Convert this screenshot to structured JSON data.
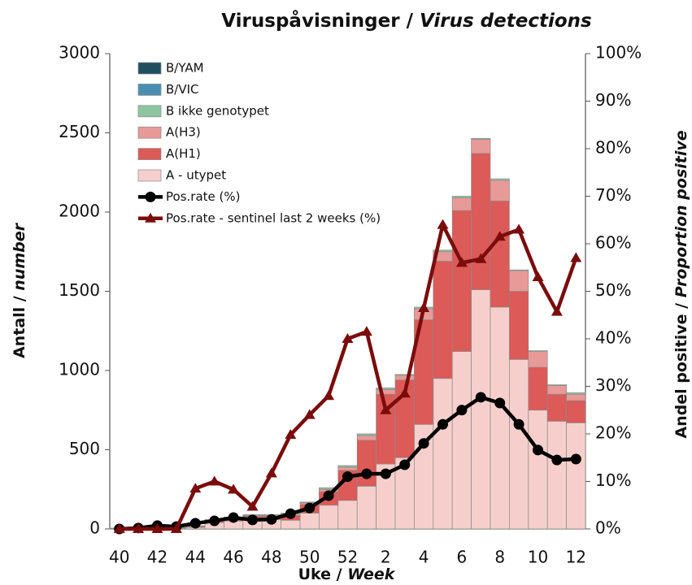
{
  "chart_data": {
    "type": "bar",
    "title_parts": [
      "Viruspåvisninger / ",
      "Virus detections"
    ],
    "y_label_parts": [
      "Antall / ",
      "number"
    ],
    "y2_label_parts": [
      "Andel positive / ",
      "Proportion positive"
    ],
    "x_label_parts": [
      "Uke / ",
      "Week"
    ],
    "categories": [
      "40",
      null,
      "42",
      null,
      "44",
      null,
      "46",
      null,
      "48",
      null,
      "50",
      null,
      "52",
      null,
      "2",
      null,
      "4",
      null,
      "6",
      null,
      "8",
      null,
      "10",
      null,
      "12"
    ],
    "ylim": [
      0,
      3000
    ],
    "yticks": [
      0,
      500,
      1000,
      1500,
      2000,
      2500,
      3000
    ],
    "y2lim": [
      0,
      100
    ],
    "y2ticks": [
      {
        "value": 0,
        "label": "0%"
      },
      {
        "value": 10,
        "label": "10%"
      },
      {
        "value": 20,
        "label": "20%"
      },
      {
        "value": 30,
        "label": "30%"
      },
      {
        "value": 40,
        "label": "40%"
      },
      {
        "value": 50,
        "label": "50%"
      },
      {
        "value": 60,
        "label": "60%"
      },
      {
        "value": 70,
        "label": "70%"
      },
      {
        "value": 80,
        "label": "80%"
      },
      {
        "value": 90,
        "label": "90%"
      },
      {
        "value": 100,
        "label": "100%"
      }
    ],
    "stacked": true,
    "series": [
      {
        "name": "A - utypet",
        "type": "bar",
        "color": "#f6cfcc",
        "values": [
          3,
          3,
          4,
          5,
          10,
          40,
          50,
          60,
          60,
          55,
          100,
          150,
          180,
          270,
          410,
          450,
          660,
          950,
          1120,
          1510,
          1400,
          1070,
          750,
          680,
          670
        ]
      },
      {
        "name": "A(H1)",
        "type": "bar",
        "color": "#dc5a57",
        "values": [
          1,
          1,
          2,
          3,
          5,
          10,
          15,
          20,
          20,
          30,
          55,
          85,
          190,
          290,
          440,
          490,
          660,
          740,
          890,
          860,
          670,
          430,
          270,
          170,
          140
        ]
      },
      {
        "name": "A(H3)",
        "type": "bar",
        "color": "#e89a98",
        "values": [
          0,
          0,
          1,
          1,
          3,
          5,
          5,
          5,
          5,
          10,
          10,
          15,
          20,
          30,
          30,
          30,
          70,
          60,
          80,
          90,
          130,
          130,
          100,
          55,
          40
        ]
      },
      {
        "name": "B ikke genotypet",
        "type": "bar",
        "color": "#8fc4a0",
        "values": [
          1,
          1,
          1,
          1,
          2,
          5,
          5,
          5,
          5,
          5,
          5,
          10,
          10,
          10,
          10,
          5,
          10,
          10,
          10,
          5,
          10,
          5,
          5,
          5,
          10
        ]
      },
      {
        "name": "B/VIC",
        "type": "bar",
        "color": "#4a8fb0",
        "values": [
          0,
          0,
          0,
          0,
          0,
          0,
          0,
          0,
          0,
          0,
          0,
          0,
          0,
          0,
          0,
          0,
          0,
          0,
          0,
          0,
          0,
          0,
          0,
          0,
          0
        ]
      },
      {
        "name": "B/YAM",
        "type": "bar",
        "color": "#1f4e5f",
        "values": [
          0,
          0,
          0,
          0,
          0,
          0,
          0,
          0,
          0,
          0,
          0,
          0,
          0,
          0,
          0,
          0,
          0,
          0,
          0,
          0,
          0,
          0,
          0,
          0,
          0
        ]
      },
      {
        "name": "Pos.rate (%)",
        "type": "line",
        "axis": "y2",
        "marker": "circle",
        "color": "#000000",
        "values": [
          0,
          0.2,
          0.7,
          0.5,
          1.2,
          1.7,
          2.4,
          1.9,
          2,
          3.2,
          4.4,
          7,
          11,
          11.6,
          11.6,
          13.5,
          18,
          22,
          25,
          27.7,
          26.5,
          22,
          16.6,
          14.5,
          14.7
        ]
      },
      {
        "name": "Pos.rate - sentinel last 2 weeks (%)",
        "type": "line",
        "axis": "y2",
        "marker": "triangle",
        "color": "#7b0c0c",
        "values": [
          0,
          0,
          0,
          0,
          8.5,
          10,
          8.3,
          4.7,
          11.7,
          19.8,
          24,
          28,
          40,
          41.5,
          25,
          28.5,
          46.5,
          64,
          56,
          56.8,
          61.5,
          63,
          53,
          45.7,
          57
        ]
      }
    ]
  }
}
